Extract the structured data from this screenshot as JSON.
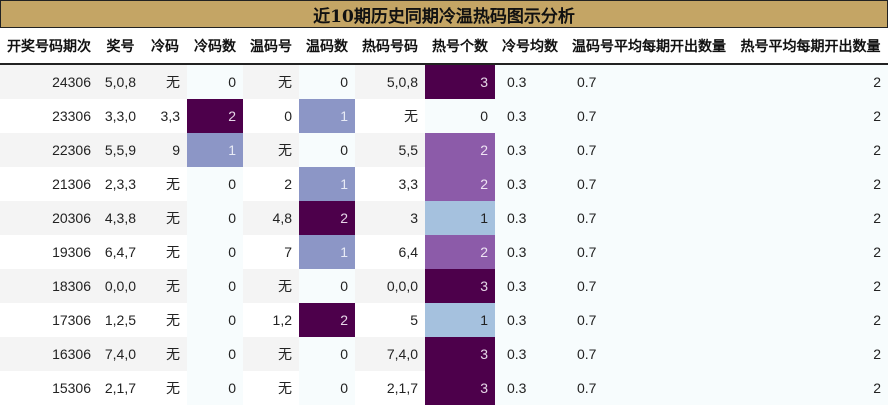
{
  "title": "近10期历史同期冷温热码图示分析",
  "colors": {
    "title_bg": "#c4a565",
    "heat_min": "#f7fcfd",
    "heat_1": "#8c96c6",
    "heat_1_alt": "#a5c1de",
    "heat_2_alt": "#8c5ba9",
    "heat_max": "#4d004b"
  },
  "columns": [
    "开奖号码期次",
    "奖号",
    "冷码",
    "冷码数",
    "温码号",
    "温码数",
    "热码号码",
    "热号个数",
    "冷号均数",
    "温码号平均每期开出数量",
    "热号平均每期开出数量"
  ],
  "rows": [
    {
      "period": "24306",
      "numbers": "5,0,8",
      "cold": "无",
      "cold_count": "0",
      "warm": "无",
      "warm_count": "0",
      "hot": "5,0,8",
      "hot_count": "3",
      "cold_avg": "0.3",
      "warm_avg": "0.7",
      "hot_avg": "2"
    },
    {
      "period": "23306",
      "numbers": "3,3,0",
      "cold": "3,3",
      "cold_count": "2",
      "warm": "0",
      "warm_count": "1",
      "hot": "无",
      "hot_count": "0",
      "cold_avg": "0.3",
      "warm_avg": "0.7",
      "hot_avg": "2"
    },
    {
      "period": "22306",
      "numbers": "5,5,9",
      "cold": "9",
      "cold_count": "1",
      "warm": "无",
      "warm_count": "0",
      "hot": "5,5",
      "hot_count": "2",
      "cold_avg": "0.3",
      "warm_avg": "0.7",
      "hot_avg": "2"
    },
    {
      "period": "21306",
      "numbers": "2,3,3",
      "cold": "无",
      "cold_count": "0",
      "warm": "2",
      "warm_count": "1",
      "hot": "3,3",
      "hot_count": "2",
      "cold_avg": "0.3",
      "warm_avg": "0.7",
      "hot_avg": "2"
    },
    {
      "period": "20306",
      "numbers": "4,3,8",
      "cold": "无",
      "cold_count": "0",
      "warm": "4,8",
      "warm_count": "2",
      "hot": "3",
      "hot_count": "1",
      "cold_avg": "0.3",
      "warm_avg": "0.7",
      "hot_avg": "2"
    },
    {
      "period": "19306",
      "numbers": "6,4,7",
      "cold": "无",
      "cold_count": "0",
      "warm": "7",
      "warm_count": "1",
      "hot": "6,4",
      "hot_count": "2",
      "cold_avg": "0.3",
      "warm_avg": "0.7",
      "hot_avg": "2"
    },
    {
      "period": "18306",
      "numbers": "0,0,0",
      "cold": "无",
      "cold_count": "0",
      "warm": "无",
      "warm_count": "0",
      "hot": "0,0,0",
      "hot_count": "3",
      "cold_avg": "0.3",
      "warm_avg": "0.7",
      "hot_avg": "2"
    },
    {
      "period": "17306",
      "numbers": "1,2,5",
      "cold": "无",
      "cold_count": "0",
      "warm": "1,2",
      "warm_count": "2",
      "hot": "5",
      "hot_count": "1",
      "cold_avg": "0.3",
      "warm_avg": "0.7",
      "hot_avg": "2"
    },
    {
      "period": "16306",
      "numbers": "7,4,0",
      "cold": "无",
      "cold_count": "0",
      "warm": "无",
      "warm_count": "0",
      "hot": "7,4,0",
      "hot_count": "3",
      "cold_avg": "0.3",
      "warm_avg": "0.7",
      "hot_avg": "2"
    },
    {
      "period": "15306",
      "numbers": "2,1,7",
      "cold": "无",
      "cold_count": "0",
      "warm": "无",
      "warm_count": "0",
      "hot": "2,1,7",
      "hot_count": "3",
      "cold_avg": "0.3",
      "warm_avg": "0.7",
      "hot_avg": "2"
    }
  ]
}
